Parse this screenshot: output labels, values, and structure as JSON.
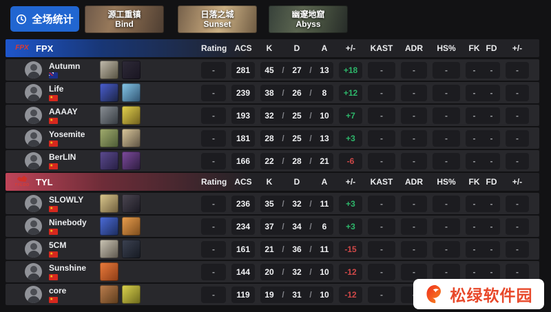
{
  "toolbar": {
    "stats_button": "全场统计"
  },
  "maps": [
    {
      "name_cn": "源工重镇",
      "name_en": "Bind"
    },
    {
      "name_cn": "日落之城",
      "name_en": "Sunset"
    },
    {
      "name_cn": "幽邃地窟",
      "name_en": "Abyss"
    }
  ],
  "columns": {
    "rating": "Rating",
    "acs": "ACS",
    "k": "K",
    "d": "D",
    "a": "A",
    "plus_minus": "+/-",
    "kast": "KAST",
    "adr": "ADR",
    "hs": "HS%",
    "fk": "FK",
    "fd": "FD",
    "plus_minus2": "+/-"
  },
  "colors": {
    "positive": "#2db66a",
    "negative": "#d04848",
    "button_blue": "#2166d1",
    "fpx_accent": "#1e56cb",
    "tyl_accent": "#bf4458",
    "watermark_red": "#e8482a"
  },
  "teams": [
    {
      "tag": "FPX",
      "accent": "#1e56cb",
      "logo": {
        "text": "FPX",
        "art": false
      },
      "players": [
        {
          "name": "Autumn",
          "flag": "au",
          "rating": "-",
          "acs": "281",
          "k": "45",
          "d": "27",
          "a": "13",
          "diff": "+18",
          "kast": "-",
          "adr": "-",
          "hs": "-",
          "fk": "-",
          "fd": "-",
          "diff2": "-",
          "agents": [
            [
              "#c2bcae",
              "#55503f"
            ],
            [
              "#2e2a38",
              "#191521"
            ]
          ]
        },
        {
          "name": "Life",
          "flag": "cn",
          "rating": "-",
          "acs": "239",
          "k": "38",
          "d": "26",
          "a": "8",
          "diff": "+12",
          "kast": "-",
          "adr": "-",
          "hs": "-",
          "fk": "-",
          "fd": "-",
          "diff2": "-",
          "agents": [
            [
              "#4a5fd2",
              "#1b2342"
            ],
            [
              "#86c8ea",
              "#2f5270"
            ]
          ]
        },
        {
          "name": "AAAAY",
          "flag": "cn",
          "rating": "-",
          "acs": "193",
          "k": "32",
          "d": "25",
          "a": "10",
          "diff": "+7",
          "kast": "-",
          "adr": "-",
          "hs": "-",
          "fk": "-",
          "fd": "-",
          "diff2": "-",
          "agents": [
            [
              "#8b9096",
              "#343a40"
            ],
            [
              "#e5d44e",
              "#6f5e1d"
            ]
          ]
        },
        {
          "name": "Yosemite",
          "flag": "cn",
          "rating": "-",
          "acs": "181",
          "k": "28",
          "d": "25",
          "a": "13",
          "diff": "+3",
          "kast": "-",
          "adr": "-",
          "hs": "-",
          "fk": "-",
          "fd": "-",
          "diff2": "-",
          "agents": [
            [
              "#a2ad6e",
              "#4c5a35"
            ],
            [
              "#dcc99c",
              "#5c5142"
            ]
          ]
        },
        {
          "name": "BerLIN",
          "flag": "cn",
          "rating": "-",
          "acs": "166",
          "k": "22",
          "d": "28",
          "a": "21",
          "diff": "-6",
          "kast": "-",
          "adr": "-",
          "hs": "-",
          "fk": "-",
          "fd": "-",
          "diff2": "-",
          "agents": [
            [
              "#5c4b90",
              "#261e42"
            ],
            [
              "#7e4b9e",
              "#2c1c3e"
            ]
          ]
        }
      ]
    },
    {
      "tag": "TYL",
      "accent": "#bf4458",
      "logo": {
        "text": "TYLOO",
        "art": true
      },
      "players": [
        {
          "name": "SLOWLY",
          "flag": "cn",
          "rating": "-",
          "acs": "236",
          "k": "35",
          "d": "32",
          "a": "11",
          "diff": "+3",
          "kast": "-",
          "adr": "-",
          "hs": "-",
          "fk": "-",
          "fd": "-",
          "diff2": "-",
          "agents": [
            [
              "#dcc98e",
              "#6e5d3c"
            ],
            [
              "#4c4752",
              "#1b1922"
            ]
          ]
        },
        {
          "name": "Ninebody",
          "flag": "cn",
          "rating": "-",
          "acs": "234",
          "k": "37",
          "d": "34",
          "a": "6",
          "diff": "+3",
          "kast": "-",
          "adr": "-",
          "hs": "-",
          "fk": "-",
          "fd": "-",
          "diff2": "-",
          "agents": [
            [
              "#4c6cda",
              "#1c2c5c"
            ],
            [
              "#ea9e4e",
              "#7c4c1c"
            ]
          ]
        },
        {
          "name": "5CM",
          "flag": "cn",
          "rating": "-",
          "acs": "161",
          "k": "21",
          "d": "36",
          "a": "11",
          "diff": "-15",
          "kast": "-",
          "adr": "-",
          "hs": "-",
          "fk": "-",
          "fd": "-",
          "diff2": "-",
          "agents": [
            [
              "#ccc6b6",
              "#5c564c"
            ],
            [
              "#3c4252",
              "#161a22"
            ]
          ]
        },
        {
          "name": "Sunshine",
          "flag": "cn",
          "rating": "-",
          "acs": "144",
          "k": "20",
          "d": "32",
          "a": "10",
          "diff": "-12",
          "kast": "-",
          "adr": "-",
          "hs": "-",
          "fk": "-",
          "fd": "-",
          "diff2": "-",
          "agents": [
            [
              "#ec7c3c",
              "#8c3c16"
            ]
          ]
        },
        {
          "name": "core",
          "flag": "cn",
          "rating": "-",
          "acs": "119",
          "k": "19",
          "d": "31",
          "a": "10",
          "diff": "-12",
          "kast": "-",
          "adr": "-",
          "hs": "-",
          "fk": "-",
          "fd": "-",
          "diff2": "-",
          "agents": [
            [
              "#bc7e4e",
              "#5c3c1c"
            ],
            [
              "#dcd44e",
              "#6c681c"
            ]
          ]
        }
      ]
    }
  ],
  "watermark": {
    "text": "松绿软件园"
  }
}
